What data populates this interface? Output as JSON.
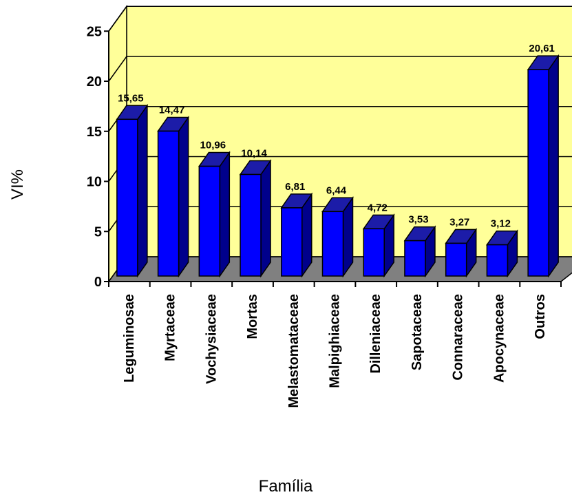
{
  "chart_data": {
    "type": "bar",
    "title": "",
    "xlabel": "Família",
    "ylabel": "VI%",
    "ylim": [
      0,
      25
    ],
    "yticks": [
      0,
      5,
      10,
      15,
      20,
      25
    ],
    "categories": [
      "Leguminosae",
      "Myrtaceae",
      "Vochysiaceae",
      "Mortas",
      "Melastomataceae",
      "Malpighiaceae",
      "Dilleniaceae",
      "Sapotaceae",
      "Connaraceae",
      "Apocynaceae",
      "Outros"
    ],
    "values": [
      15.65,
      14.47,
      10.96,
      10.14,
      6.81,
      6.44,
      4.72,
      3.53,
      3.27,
      3.12,
      20.61
    ],
    "data_labels": [
      "15,65",
      "14,47",
      "10,96",
      "10,14",
      "6,81",
      "6,44",
      "4,72",
      "3,53",
      "3,27",
      "3,12",
      "20,61"
    ],
    "grid": true,
    "legend": "none",
    "style": "3d-column",
    "colors": {
      "bar_front": "#0000FF",
      "bar_side": "#00008B",
      "bar_top": "#1C1CA8",
      "back_wall": "#FFFF99",
      "floor": "#808080"
    }
  }
}
